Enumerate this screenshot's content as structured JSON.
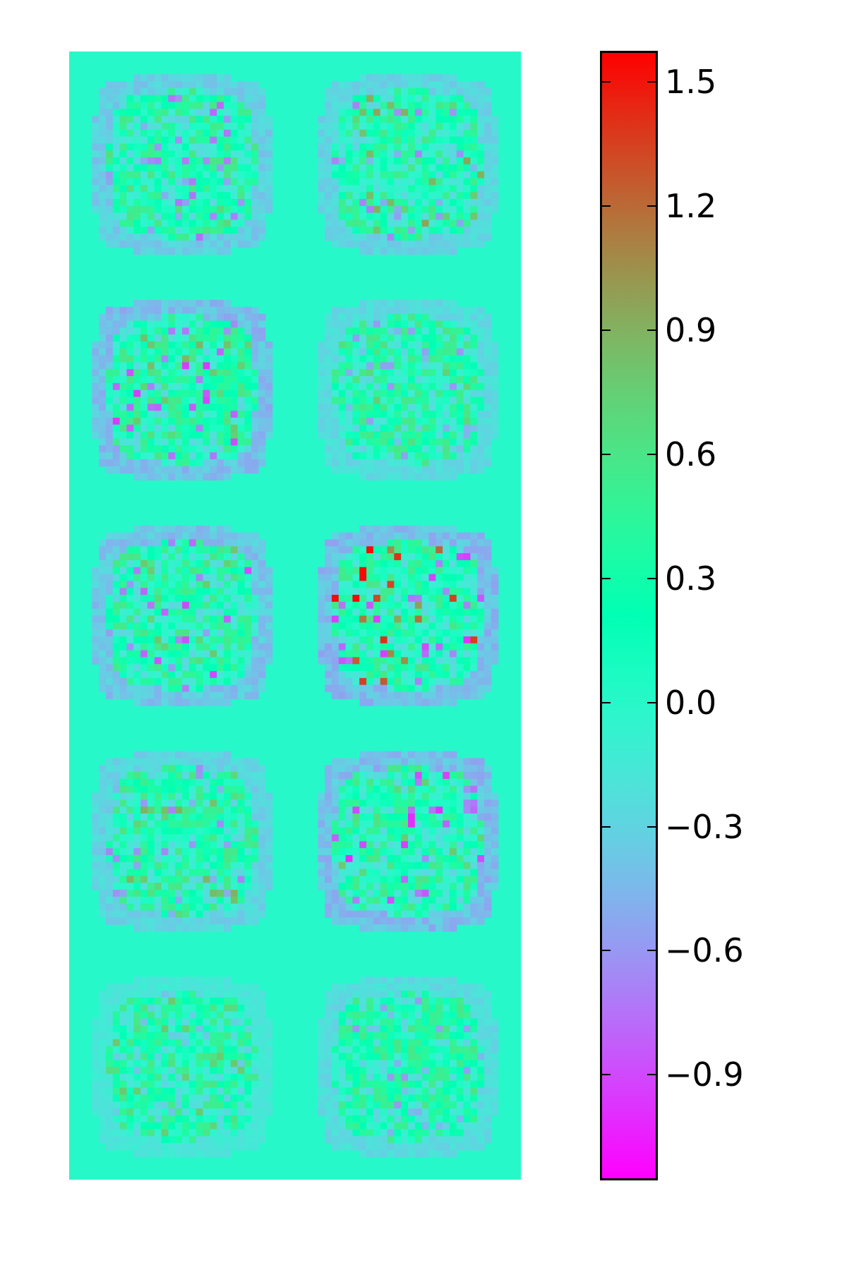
{
  "chart_data": {
    "type": "heatmap",
    "title": "",
    "layout": {
      "rows": 5,
      "cols": 2
    },
    "colormap": "rainbow",
    "colors": {
      "background": "#64fbc8",
      "min": "#8000ff",
      "max": "#ff0000"
    },
    "vmin": -1.15,
    "vmax": 1.57,
    "colorbar": {
      "ticks": [
        1.5,
        1.2,
        0.9,
        0.6,
        0.3,
        0.0,
        -0.3,
        -0.6,
        -0.9
      ],
      "tick_labels": [
        "1.5",
        "1.2",
        "0.9",
        "0.6",
        "0.3",
        "0.0",
        "−0.3",
        "−0.6",
        "−0.9"
      ],
      "placement": "right"
    },
    "panels": [
      {
        "row": 0,
        "col": 0,
        "min": -0.8,
        "max": 0.7
      },
      {
        "row": 0,
        "col": 1,
        "min": -0.7,
        "max": 1.0
      },
      {
        "row": 1,
        "col": 0,
        "min": -1.0,
        "max": 0.9
      },
      {
        "row": 1,
        "col": 1,
        "min": -0.6,
        "max": 0.8
      },
      {
        "row": 2,
        "col": 0,
        "min": -0.9,
        "max": 0.8
      },
      {
        "row": 2,
        "col": 1,
        "min": -1.0,
        "max": 1.55
      },
      {
        "row": 3,
        "col": 0,
        "min": -0.7,
        "max": 0.9
      },
      {
        "row": 3,
        "col": 1,
        "min": -1.0,
        "max": 0.8
      },
      {
        "row": 4,
        "col": 0,
        "min": -0.4,
        "max": 0.8
      },
      {
        "row": 4,
        "col": 1,
        "min": -0.6,
        "max": 0.6
      }
    ]
  }
}
